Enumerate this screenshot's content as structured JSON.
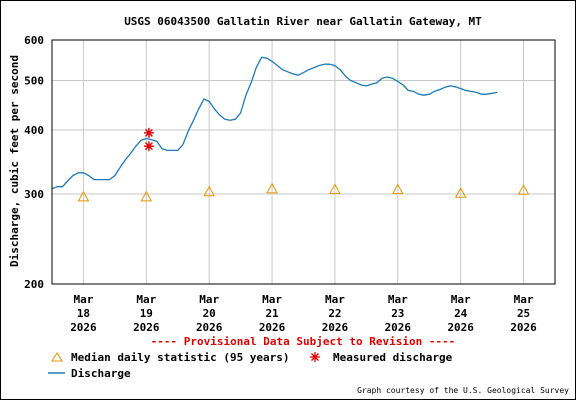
{
  "chart_data": {
    "type": "line",
    "title": "USGS 06043500 Gallatin River near Gallatin Gateway, MT",
    "ylabel": "Discharge, cubic feet per second",
    "xlabel": "",
    "y_scale": "log",
    "ylim": [
      200,
      600
    ],
    "y_ticks": [
      200,
      300,
      400,
      500,
      600
    ],
    "xlim": [
      "2026-03-17T12:00",
      "2026-03-25T12:00"
    ],
    "x_ticks": [
      {
        "t": "2026-03-18T00:00",
        "month": "Mar",
        "day": "18",
        "year": "2026"
      },
      {
        "t": "2026-03-19T00:00",
        "month": "Mar",
        "day": "19",
        "year": "2026"
      },
      {
        "t": "2026-03-20T00:00",
        "month": "Mar",
        "day": "20",
        "year": "2026"
      },
      {
        "t": "2026-03-21T00:00",
        "month": "Mar",
        "day": "21",
        "year": "2026"
      },
      {
        "t": "2026-03-22T00:00",
        "month": "Mar",
        "day": "22",
        "year": "2026"
      },
      {
        "t": "2026-03-23T00:00",
        "month": "Mar",
        "day": "23",
        "year": "2026"
      },
      {
        "t": "2026-03-24T00:00",
        "month": "Mar",
        "day": "24",
        "year": "2026"
      },
      {
        "t": "2026-03-25T00:00",
        "month": "Mar",
        "day": "25",
        "year": "2026"
      }
    ],
    "grid": true,
    "provisional_note": "---- Provisional Data Subject to Revision ----",
    "credit": "Graph courtesy of the U.S. Geological Survey",
    "legend": [
      {
        "label": "Median daily statistic (95 years)",
        "marker": "triangle"
      },
      {
        "label": "Measured discharge",
        "marker": "asterisk"
      },
      {
        "label": "Discharge",
        "marker": "line"
      }
    ],
    "series": [
      {
        "name": "Discharge",
        "type": "line",
        "color": "#1d7bb8",
        "points": [
          [
            "2026-03-17T12:00",
            307
          ],
          [
            "2026-03-17T14:00",
            310
          ],
          [
            "2026-03-17T16:00",
            310
          ],
          [
            "2026-03-17T18:00",
            318
          ],
          [
            "2026-03-17T20:00",
            326
          ],
          [
            "2026-03-17T22:00",
            330
          ],
          [
            "2026-03-18T00:00",
            330
          ],
          [
            "2026-03-18T02:00",
            326
          ],
          [
            "2026-03-18T04:00",
            320
          ],
          [
            "2026-03-18T06:00",
            320
          ],
          [
            "2026-03-18T08:00",
            320
          ],
          [
            "2026-03-18T10:00",
            320
          ],
          [
            "2026-03-18T12:00",
            326
          ],
          [
            "2026-03-18T14:00",
            338
          ],
          [
            "2026-03-18T16:00",
            350
          ],
          [
            "2026-03-18T18:00",
            360
          ],
          [
            "2026-03-18T20:00",
            372
          ],
          [
            "2026-03-18T22:00",
            382
          ],
          [
            "2026-03-19T00:00",
            385
          ],
          [
            "2026-03-19T02:00",
            383
          ],
          [
            "2026-03-19T04:00",
            380
          ],
          [
            "2026-03-19T06:00",
            368
          ],
          [
            "2026-03-19T08:00",
            365
          ],
          [
            "2026-03-19T10:00",
            365
          ],
          [
            "2026-03-19T12:00",
            365
          ],
          [
            "2026-03-19T14:00",
            375
          ],
          [
            "2026-03-19T16:00",
            398
          ],
          [
            "2026-03-19T18:00",
            418
          ],
          [
            "2026-03-19T20:00",
            440
          ],
          [
            "2026-03-19T22:00",
            460
          ],
          [
            "2026-03-20T00:00",
            455
          ],
          [
            "2026-03-20T02:00",
            440
          ],
          [
            "2026-03-20T04:00",
            428
          ],
          [
            "2026-03-20T06:00",
            420
          ],
          [
            "2026-03-20T08:00",
            418
          ],
          [
            "2026-03-20T10:00",
            420
          ],
          [
            "2026-03-20T12:00",
            432
          ],
          [
            "2026-03-20T14:00",
            468
          ],
          [
            "2026-03-20T16:00",
            495
          ],
          [
            "2026-03-20T18:00",
            530
          ],
          [
            "2026-03-20T20:00",
            555
          ],
          [
            "2026-03-20T22:00",
            553
          ],
          [
            "2026-03-21T00:00",
            545
          ],
          [
            "2026-03-21T02:00",
            535
          ],
          [
            "2026-03-21T04:00",
            525
          ],
          [
            "2026-03-21T06:00",
            520
          ],
          [
            "2026-03-21T08:00",
            515
          ],
          [
            "2026-03-21T10:00",
            512
          ],
          [
            "2026-03-21T12:00",
            518
          ],
          [
            "2026-03-21T14:00",
            525
          ],
          [
            "2026-03-21T16:00",
            530
          ],
          [
            "2026-03-21T18:00",
            535
          ],
          [
            "2026-03-21T20:00",
            538
          ],
          [
            "2026-03-21T22:00",
            538
          ],
          [
            "2026-03-22T00:00",
            535
          ],
          [
            "2026-03-22T02:00",
            525
          ],
          [
            "2026-03-22T04:00",
            510
          ],
          [
            "2026-03-22T06:00",
            500
          ],
          [
            "2026-03-22T08:00",
            495
          ],
          [
            "2026-03-22T10:00",
            490
          ],
          [
            "2026-03-22T12:00",
            488
          ],
          [
            "2026-03-22T14:00",
            492
          ],
          [
            "2026-03-22T16:00",
            495
          ],
          [
            "2026-03-22T18:00",
            505
          ],
          [
            "2026-03-22T20:00",
            508
          ],
          [
            "2026-03-22T22:00",
            505
          ],
          [
            "2026-03-23T00:00",
            498
          ],
          [
            "2026-03-23T02:00",
            490
          ],
          [
            "2026-03-23T04:00",
            478
          ],
          [
            "2026-03-23T06:00",
            476
          ],
          [
            "2026-03-23T08:00",
            470
          ],
          [
            "2026-03-23T10:00",
            468
          ],
          [
            "2026-03-23T12:00",
            470
          ],
          [
            "2026-03-23T14:00",
            476
          ],
          [
            "2026-03-23T16:00",
            480
          ],
          [
            "2026-03-23T18:00",
            485
          ],
          [
            "2026-03-23T20:00",
            488
          ],
          [
            "2026-03-23T22:00",
            486
          ],
          [
            "2026-03-24T00:00",
            482
          ],
          [
            "2026-03-24T02:00",
            478
          ],
          [
            "2026-03-24T04:00",
            476
          ],
          [
            "2026-03-24T06:00",
            474
          ],
          [
            "2026-03-24T08:00",
            470
          ],
          [
            "2026-03-24T10:00",
            470
          ],
          [
            "2026-03-24T12:00",
            472
          ],
          [
            "2026-03-24T14:00",
            474
          ]
        ]
      },
      {
        "name": "Median daily statistic (95 years)",
        "type": "scatter",
        "marker": "triangle",
        "color": "#e69500",
        "points": [
          [
            "2026-03-18T00:00",
            296
          ],
          [
            "2026-03-19T00:00",
            296
          ],
          [
            "2026-03-20T00:00",
            303
          ],
          [
            "2026-03-21T00:00",
            307
          ],
          [
            "2026-03-22T00:00",
            306
          ],
          [
            "2026-03-23T00:00",
            306
          ],
          [
            "2026-03-24T00:00",
            301
          ],
          [
            "2026-03-25T00:00",
            305
          ]
        ]
      },
      {
        "name": "Measured discharge",
        "type": "scatter",
        "marker": "asterisk",
        "color": "#e00000",
        "points": [
          [
            "2026-03-19T01:00",
            395
          ],
          [
            "2026-03-19T01:00",
            372
          ]
        ]
      }
    ]
  }
}
